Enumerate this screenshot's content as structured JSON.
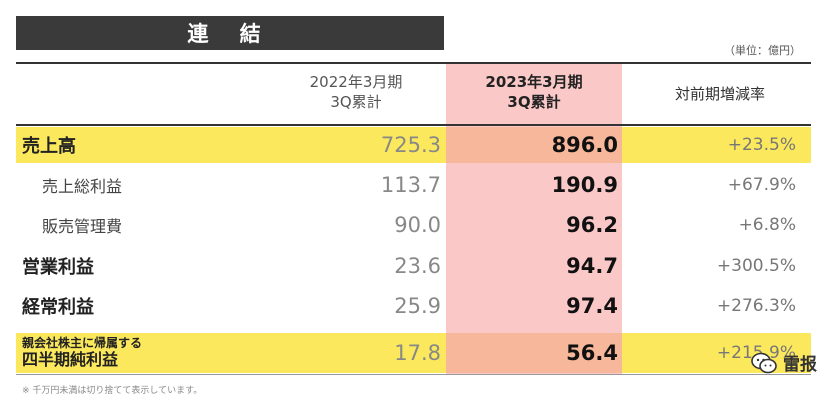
{
  "title": "連 結",
  "unit": "（単位：億円）",
  "headers": {
    "prev": [
      "2022年3月期",
      "3Q累計"
    ],
    "curr": [
      "2023年3月期",
      "3Q累計"
    ],
    "rate": "対前期増減率"
  },
  "rows": [
    {
      "label": "売上高",
      "prev": "725.3",
      "curr": "896.0",
      "rate": "+23.5%"
    },
    {
      "label": "売上総利益",
      "prev": "113.7",
      "curr": "190.9",
      "rate": "+67.9%"
    },
    {
      "label": "販売管理費",
      "prev": "90.0",
      "curr": "96.2",
      "rate": "+6.8%"
    },
    {
      "label": "営業利益",
      "prev": "23.6",
      "curr": "94.7",
      "rate": "+300.5%"
    },
    {
      "label": "経常利益",
      "prev": "25.9",
      "curr": "97.4",
      "rate": "+276.3%"
    },
    {
      "label_line1": "親会社株主に帰属する",
      "label_line2": "四半期純利益",
      "prev": "17.8",
      "curr": "56.4",
      "rate": "+215.9%"
    }
  ],
  "footnote": "※ 千万円未満は切り捨てて表示しています。",
  "watermark": "雷报",
  "colors": {
    "highlight_row": "#fbe85c",
    "highlight_col": "#fbc8c8",
    "overlap": "#f6b79a",
    "title_bg": "#3a3a3a"
  }
}
